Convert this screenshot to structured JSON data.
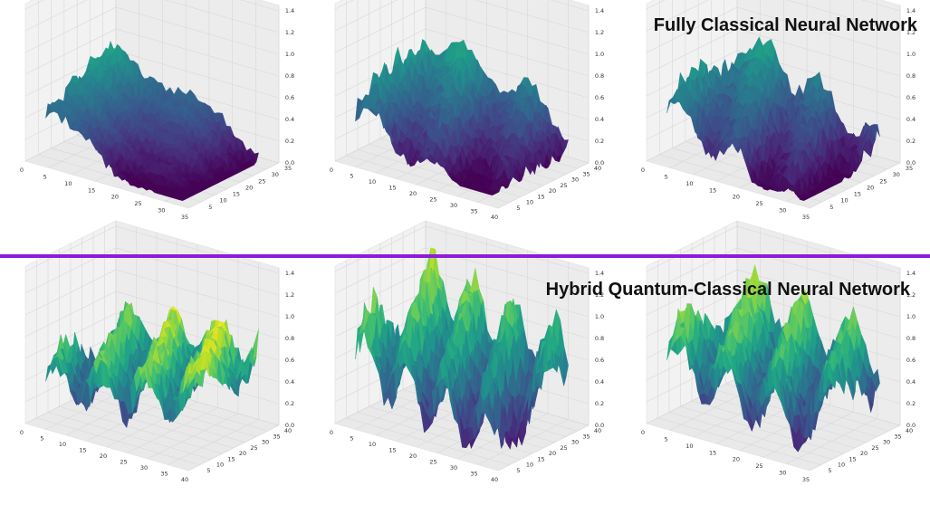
{
  "titles": {
    "top": "Fully Classical Neural Network",
    "bottom": "Hybrid Quantum-Classical Neural Network"
  },
  "divider_color": "#8e1bdc",
  "colormap": "viridis",
  "chart_data": [
    {
      "type": "surface3d",
      "id": "classical-1",
      "group": "top",
      "xticks": [
        0,
        5,
        10,
        15,
        20,
        25,
        30,
        35
      ],
      "yticks": [
        5,
        10,
        15,
        20,
        25,
        30,
        35
      ],
      "zticks": [
        0.0,
        0.2,
        0.4,
        0.6,
        0.8,
        1.0,
        1.2,
        1.4
      ],
      "xlim": [
        0,
        35
      ],
      "ylim": [
        0,
        35
      ],
      "zlim": [
        0,
        1.4
      ],
      "surface": {
        "base": 0.25,
        "ax": 0.65,
        "ay": 0.3,
        "wave_amp": 0.08,
        "wave_freq": 1.4,
        "noise": 0.05,
        "zmin": 0.0,
        "zmax": 1.32
      }
    },
    {
      "type": "surface3d",
      "id": "classical-2",
      "group": "top",
      "xticks": [
        0,
        5,
        10,
        15,
        20,
        25,
        30,
        35,
        40
      ],
      "yticks": [
        5,
        10,
        15,
        20,
        25,
        30,
        35,
        40
      ],
      "zticks": [
        0.0,
        0.2,
        0.4,
        0.6,
        0.8,
        1.0,
        1.2,
        1.4
      ],
      "xlim": [
        0,
        40
      ],
      "ylim": [
        0,
        40
      ],
      "zlim": [
        0,
        1.4
      ],
      "surface": {
        "base": 0.35,
        "ax": 0.55,
        "ay": 0.4,
        "wave_amp": 0.12,
        "wave_freq": 2.2,
        "noise": 0.07,
        "zmin": 0.05,
        "zmax": 1.35
      }
    },
    {
      "type": "surface3d",
      "id": "classical-3",
      "group": "top",
      "xticks": [
        0,
        5,
        10,
        15,
        20,
        25,
        30,
        35
      ],
      "yticks": [
        5,
        10,
        15,
        20,
        25,
        30,
        35
      ],
      "zticks": [
        0.0,
        0.2,
        0.4,
        0.6,
        0.8,
        1.0,
        1.2,
        1.4
      ],
      "xlim": [
        0,
        35
      ],
      "ylim": [
        0,
        35
      ],
      "zlim": [
        0,
        1.4
      ],
      "surface": {
        "base": 0.3,
        "ax": 0.6,
        "ay": 0.25,
        "wave_amp": 0.14,
        "wave_freq": 2.6,
        "noise": 0.07,
        "zmin": 0.0,
        "zmax": 1.38
      }
    },
    {
      "type": "surface3d",
      "id": "hybrid-1",
      "group": "bottom",
      "xticks": [
        0,
        5,
        10,
        15,
        20,
        25,
        30,
        35,
        40
      ],
      "yticks": [
        5,
        10,
        15,
        20,
        25,
        30,
        35,
        40
      ],
      "zticks": [
        0.0,
        0.2,
        0.4,
        0.6,
        0.8,
        1.0,
        1.2,
        1.4
      ],
      "xlim": [
        0,
        40
      ],
      "ylim": [
        0,
        40
      ],
      "zlim": [
        0,
        1.4
      ],
      "surface": {
        "base": 0.55,
        "ax": -0.2,
        "ay": 0.1,
        "wave_amp": 0.18,
        "wave_freq": 3.2,
        "noise": 0.09,
        "zmin": 0.1,
        "zmax": 0.9
      }
    },
    {
      "type": "surface3d",
      "id": "hybrid-2",
      "group": "bottom",
      "xticks": [
        0,
        5,
        10,
        15,
        20,
        25,
        30,
        35,
        40
      ],
      "yticks": [
        5,
        10,
        15,
        20,
        25,
        30,
        35,
        40
      ],
      "zticks": [
        0.0,
        0.2,
        0.4,
        0.6,
        0.8,
        1.0,
        1.2,
        1.4
      ],
      "xlim": [
        0,
        40
      ],
      "ylim": [
        0,
        40
      ],
      "zlim": [
        0,
        1.4
      ],
      "surface": {
        "base": 0.6,
        "ax": 0.35,
        "ay": 0.25,
        "wave_amp": 0.25,
        "wave_freq": 3.6,
        "noise": 0.1,
        "zmin": 0.0,
        "zmax": 1.3
      }
    },
    {
      "type": "surface3d",
      "id": "hybrid-3",
      "group": "bottom",
      "xticks": [
        0,
        5,
        10,
        15,
        20,
        25,
        30,
        35
      ],
      "yticks": [
        5,
        10,
        15,
        20,
        25,
        30,
        35,
        40
      ],
      "zticks": [
        0.0,
        0.2,
        0.4,
        0.6,
        0.8,
        1.0,
        1.2,
        1.4
      ],
      "xlim": [
        0,
        35
      ],
      "ylim": [
        0,
        40
      ],
      "zlim": [
        0,
        1.4
      ],
      "surface": {
        "base": 0.6,
        "ax": 0.2,
        "ay": 0.15,
        "wave_amp": 0.22,
        "wave_freq": 3.0,
        "noise": 0.09,
        "zmin": 0.05,
        "zmax": 1.15
      }
    }
  ]
}
